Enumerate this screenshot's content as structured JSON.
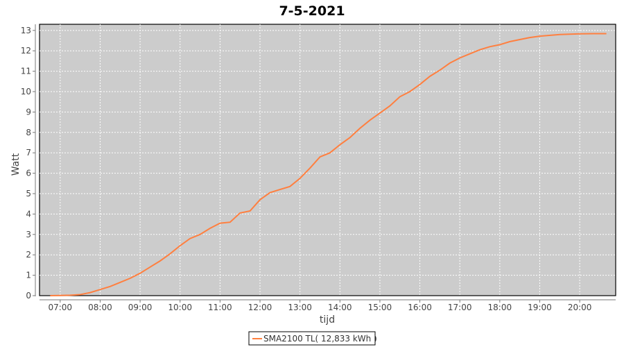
{
  "chart_data": {
    "type": "line",
    "title": "7-5-2021",
    "xlabel": "tijd",
    "ylabel": "Watt",
    "xlim": [
      "06:29",
      "20:54"
    ],
    "ylim": [
      0,
      13.3
    ],
    "x_ticks": [
      "07:00",
      "08:00",
      "09:00",
      "10:00",
      "11:00",
      "12:00",
      "13:00",
      "14:00",
      "15:00",
      "16:00",
      "17:00",
      "18:00",
      "19:00",
      "20:00"
    ],
    "y_ticks": [
      0,
      1,
      2,
      3,
      4,
      5,
      6,
      7,
      8,
      9,
      10,
      11,
      12,
      13
    ],
    "grid": true,
    "legend_position": "bottom",
    "background": "#cccccc",
    "series": [
      {
        "name": "SMA2100 TL( 12,833 kWh )",
        "color": "#ff7f3f",
        "x": [
          "06:45",
          "07:00",
          "07:15",
          "07:30",
          "07:45",
          "08:00",
          "08:15",
          "08:30",
          "08:45",
          "09:00",
          "09:15",
          "09:30",
          "09:45",
          "10:00",
          "10:15",
          "10:30",
          "10:45",
          "11:00",
          "11:15",
          "11:30",
          "11:45",
          "12:00",
          "12:15",
          "12:30",
          "12:45",
          "13:00",
          "13:15",
          "13:30",
          "13:45",
          "14:00",
          "14:15",
          "14:30",
          "14:45",
          "15:00",
          "15:15",
          "15:30",
          "15:45",
          "16:00",
          "16:15",
          "16:30",
          "16:45",
          "17:00",
          "17:15",
          "17:30",
          "17:45",
          "18:00",
          "18:15",
          "18:30",
          "18:45",
          "19:00",
          "19:30",
          "20:00",
          "20:20",
          "20:40"
        ],
        "y": [
          0,
          0.01,
          0.02,
          0.05,
          0.15,
          0.3,
          0.45,
          0.65,
          0.85,
          1.1,
          1.4,
          1.7,
          2.05,
          2.45,
          2.8,
          3.0,
          3.3,
          3.55,
          3.6,
          4.05,
          4.15,
          4.7,
          5.05,
          5.2,
          5.35,
          5.75,
          6.25,
          6.8,
          7.0,
          7.4,
          7.75,
          8.2,
          8.6,
          8.95,
          9.3,
          9.75,
          10.0,
          10.35,
          10.75,
          11.05,
          11.4,
          11.65,
          11.85,
          12.05,
          12.2,
          12.3,
          12.45,
          12.55,
          12.65,
          12.72,
          12.8,
          12.83,
          12.84,
          12.84
        ]
      }
    ]
  }
}
